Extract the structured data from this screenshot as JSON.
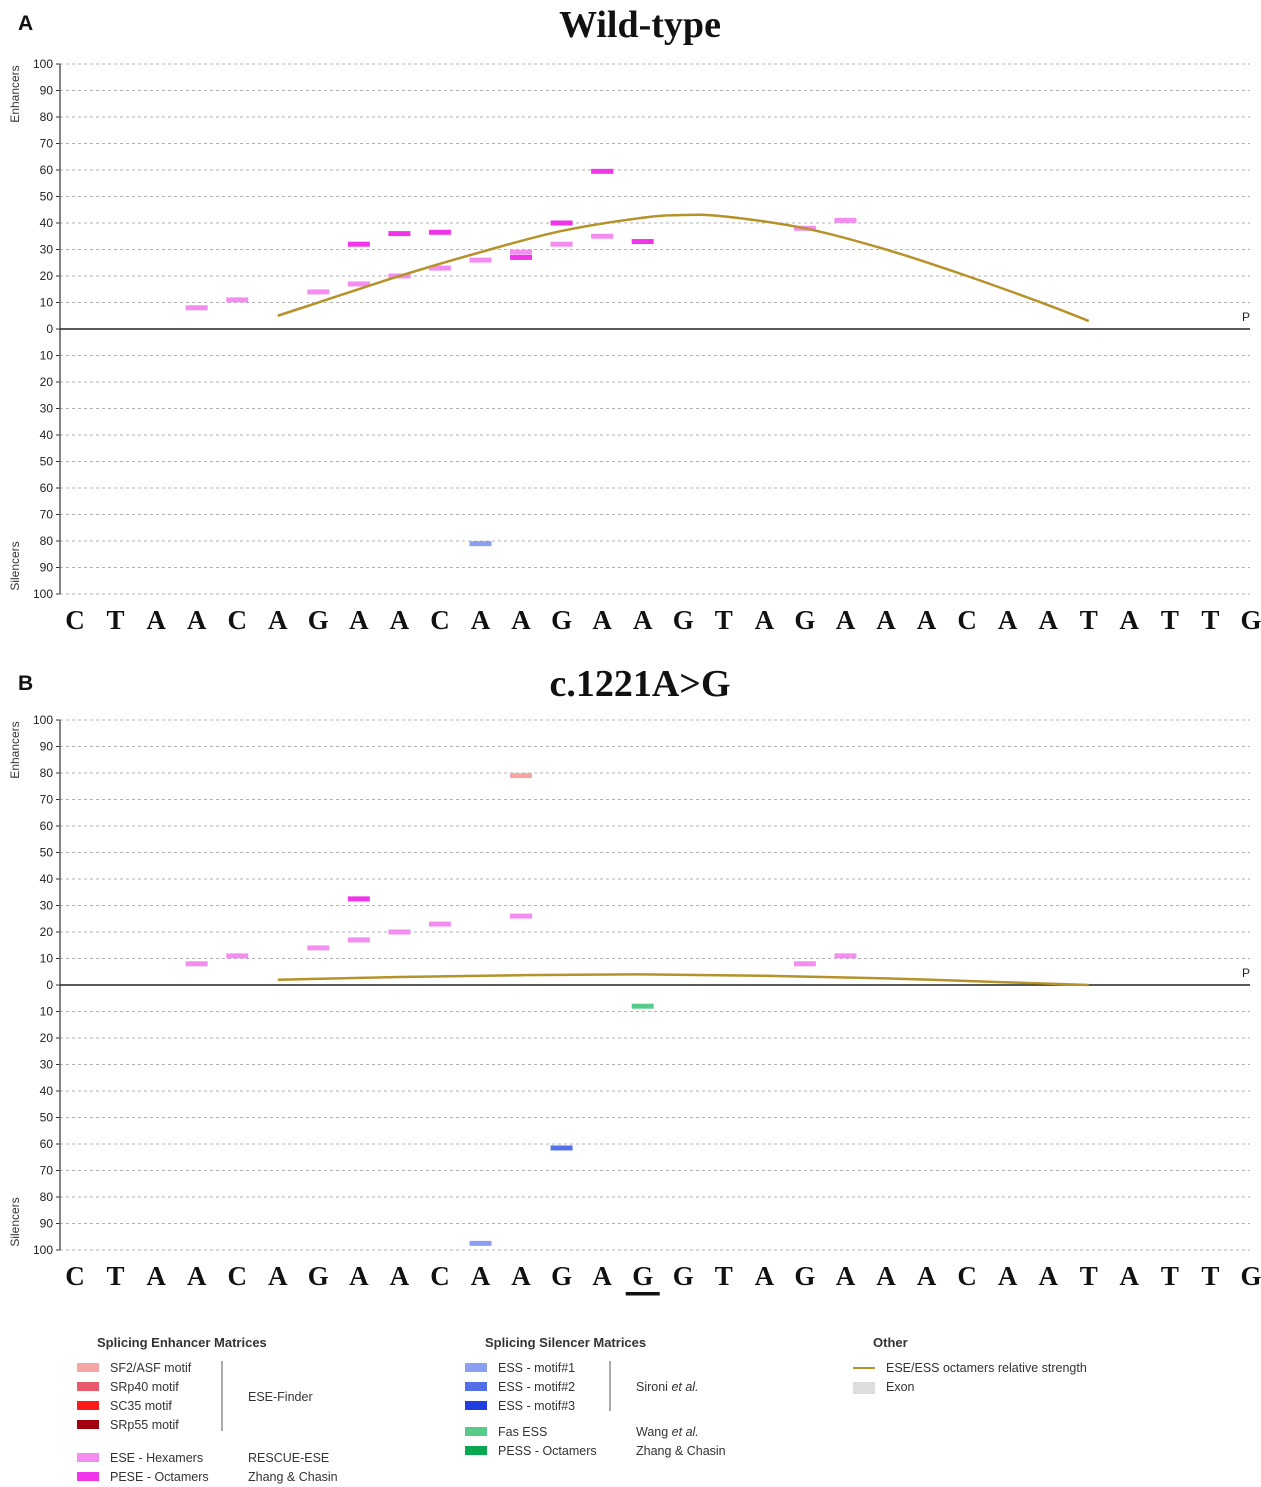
{
  "colors": {
    "sf2asf": "#f4a6a6",
    "srp40": "#e85a6a",
    "sc35": "#ff1a1a",
    "srp55": "#a00010",
    "ese_hex": "#f38ef0",
    "pese_oct": "#f035e8",
    "ess1": "#8a9ef2",
    "ess2": "#5470e8",
    "ess3": "#1f3fe0",
    "fas_ess": "#57cc8a",
    "pess_oct": "#0aa84e",
    "curve": "#b5922a",
    "exon": "#dedede"
  },
  "chart_data": [
    {
      "type": "bar",
      "panel_letter": "A",
      "title": "Wild-type",
      "ylabel_top": "Enhancers",
      "ylabel_bottom": "Silencers",
      "ylim": [
        -100,
        100
      ],
      "yticks": [
        "100",
        "90",
        "80",
        "70",
        "60",
        "50",
        "40",
        "30",
        "20",
        "10",
        "0",
        "10",
        "20",
        "30",
        "40",
        "50",
        "60",
        "70",
        "80",
        "90",
        "100"
      ],
      "end_label": "P",
      "sequence": [
        "C",
        "T",
        "A",
        "A",
        "C",
        "A",
        "G",
        "A",
        "A",
        "C",
        "A",
        "A",
        "G",
        "A",
        "A",
        "G",
        "T",
        "A",
        "G",
        "A",
        "A",
        "A",
        "C",
        "A",
        "A",
        "T",
        "A",
        "T",
        "T",
        "G"
      ],
      "underline_index": null,
      "marks": [
        {
          "pos": 3,
          "value": 8,
          "motif": "ese_hex"
        },
        {
          "pos": 4,
          "value": 11,
          "motif": "ese_hex"
        },
        {
          "pos": 6,
          "value": 14,
          "motif": "ese_hex"
        },
        {
          "pos": 7,
          "value": 17,
          "motif": "ese_hex"
        },
        {
          "pos": 7,
          "value": 32,
          "motif": "pese_oct"
        },
        {
          "pos": 8,
          "value": 20,
          "motif": "ese_hex"
        },
        {
          "pos": 8,
          "value": 36,
          "motif": "pese_oct"
        },
        {
          "pos": 9,
          "value": 23,
          "motif": "ese_hex"
        },
        {
          "pos": 9,
          "value": 36.5,
          "motif": "pese_oct"
        },
        {
          "pos": 10,
          "value": 26,
          "motif": "ese_hex"
        },
        {
          "pos": 10,
          "value": -81,
          "motif": "ess1"
        },
        {
          "pos": 11,
          "value": 27,
          "motif": "pese_oct"
        },
        {
          "pos": 11,
          "value": 29,
          "motif": "ese_hex"
        },
        {
          "pos": 12,
          "value": 32,
          "motif": "ese_hex"
        },
        {
          "pos": 12,
          "value": 40,
          "motif": "pese_oct"
        },
        {
          "pos": 13,
          "value": 35,
          "motif": "ese_hex"
        },
        {
          "pos": 13,
          "value": 59.5,
          "motif": "pese_oct"
        },
        {
          "pos": 14,
          "value": 33,
          "motif": "pese_oct"
        },
        {
          "pos": 18,
          "value": 38,
          "motif": "ese_hex"
        },
        {
          "pos": 19,
          "value": 41,
          "motif": "ese_hex"
        }
      ],
      "curve": {
        "x": [
          5,
          6,
          8,
          10,
          12,
          14,
          15,
          16,
          18,
          20,
          22,
          24,
          25
        ],
        "y": [
          5,
          10,
          20,
          29,
          37,
          42,
          43,
          42.5,
          38,
          30,
          20,
          9,
          3
        ]
      }
    },
    {
      "type": "bar",
      "panel_letter": "B",
      "title": "c.1221A>G",
      "ylabel_top": "Enhancers",
      "ylabel_bottom": "Silencers",
      "ylim": [
        -100,
        100
      ],
      "yticks": [
        "100",
        "90",
        "80",
        "70",
        "60",
        "50",
        "40",
        "30",
        "20",
        "10",
        "0",
        "10",
        "20",
        "30",
        "40",
        "50",
        "60",
        "70",
        "80",
        "90",
        "100"
      ],
      "end_label": "P",
      "sequence": [
        "C",
        "T",
        "A",
        "A",
        "C",
        "A",
        "G",
        "A",
        "A",
        "C",
        "A",
        "A",
        "G",
        "A",
        "G",
        "G",
        "T",
        "A",
        "G",
        "A",
        "A",
        "A",
        "C",
        "A",
        "A",
        "T",
        "A",
        "T",
        "T",
        "G"
      ],
      "underline_index": 14,
      "marks": [
        {
          "pos": 3,
          "value": 8,
          "motif": "ese_hex"
        },
        {
          "pos": 4,
          "value": 11,
          "motif": "ese_hex"
        },
        {
          "pos": 6,
          "value": 14,
          "motif": "ese_hex"
        },
        {
          "pos": 7,
          "value": 17,
          "motif": "ese_hex"
        },
        {
          "pos": 7,
          "value": 32.5,
          "motif": "pese_oct"
        },
        {
          "pos": 8,
          "value": 20,
          "motif": "ese_hex"
        },
        {
          "pos": 9,
          "value": 23,
          "motif": "ese_hex"
        },
        {
          "pos": 10,
          "value": -97.5,
          "motif": "ess1"
        },
        {
          "pos": 11,
          "value": 26,
          "motif": "ese_hex"
        },
        {
          "pos": 11,
          "value": 79,
          "motif": "sf2asf"
        },
        {
          "pos": 12,
          "value": -61.5,
          "motif": "ess2"
        },
        {
          "pos": 14,
          "value": -8,
          "motif": "fas_ess"
        },
        {
          "pos": 18,
          "value": 8,
          "motif": "ese_hex"
        },
        {
          "pos": 19,
          "value": 11,
          "motif": "ese_hex"
        }
      ],
      "curve": {
        "x": [
          5,
          8,
          11,
          14,
          17,
          20,
          23,
          25
        ],
        "y": [
          2,
          3,
          3.7,
          4,
          3.5,
          2.5,
          1,
          0
        ]
      }
    }
  ],
  "legend": {
    "enhancer_header": "Splicing Enhancer Matrices",
    "silencer_header": "Splicing Silencer Matrices",
    "other_header": "Other",
    "enhancer_items": [
      "SF2/ASF motif",
      "SRp40 motif",
      "SC35 motif",
      "SRp55 motif",
      "ESE - Hexamers",
      "PESE - Octamers"
    ],
    "enhancer_sources": [
      "ESE-Finder",
      "RESCUE-ESE",
      "Zhang & Chasin"
    ],
    "silencer_items": [
      "ESS - motif#1",
      "ESS - motif#2",
      "ESS - motif#3",
      "Fas ESS",
      "PESS - Octamers"
    ],
    "silencer_sources": {
      "sironi_name": "Sironi ",
      "sironi_etal": "et al.",
      "wang_name": "Wang ",
      "wang_etal": "et al.",
      "zhang": "Zhang & Chasin"
    },
    "other_items": [
      "ESE/ESS octamers relative strength",
      "Exon"
    ]
  }
}
